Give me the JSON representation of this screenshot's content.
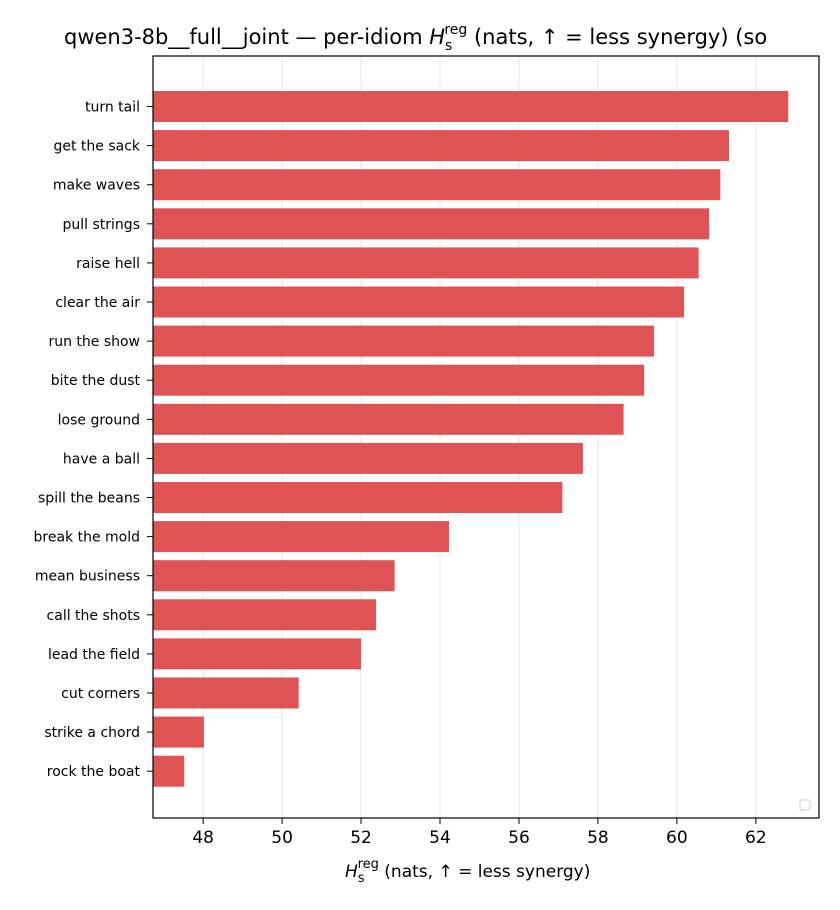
{
  "chart_data": {
    "type": "bar",
    "orientation": "horizontal",
    "title_main": "qwen3-8b__full__joint — per-idiom ",
    "title_var": "H",
    "title_sub": "s",
    "title_sup": "reg",
    "title_rest": " (nats, ↑ = less synergy) (so",
    "xlabel_var": "H",
    "xlabel_sub": "s",
    "xlabel_sup": "reg",
    "xlabel_rest": " (nats, ↑ = less synergy)",
    "categories": [
      "turn tail",
      "get the sack",
      "make waves",
      "pull strings",
      "raise hell",
      "clear the air",
      "run the show",
      "bite the dust",
      "lose ground",
      "have a ball",
      "spill the beans",
      "break the mold",
      "mean business",
      "call the shots",
      "lead the field",
      "cut corners",
      "strike a chord",
      "rock the boat"
    ],
    "values": [
      62.82,
      61.32,
      61.1,
      60.82,
      60.55,
      60.18,
      59.42,
      59.17,
      58.65,
      57.62,
      57.1,
      54.23,
      52.85,
      52.38,
      52.0,
      50.42,
      48.02,
      47.52
    ],
    "xlim": [
      46.73,
      63.6
    ],
    "xticks": [
      48,
      50,
      52,
      54,
      56,
      58,
      60,
      62
    ],
    "bar_color": "#e05355",
    "grid_x": true,
    "legend": "lower-right"
  }
}
